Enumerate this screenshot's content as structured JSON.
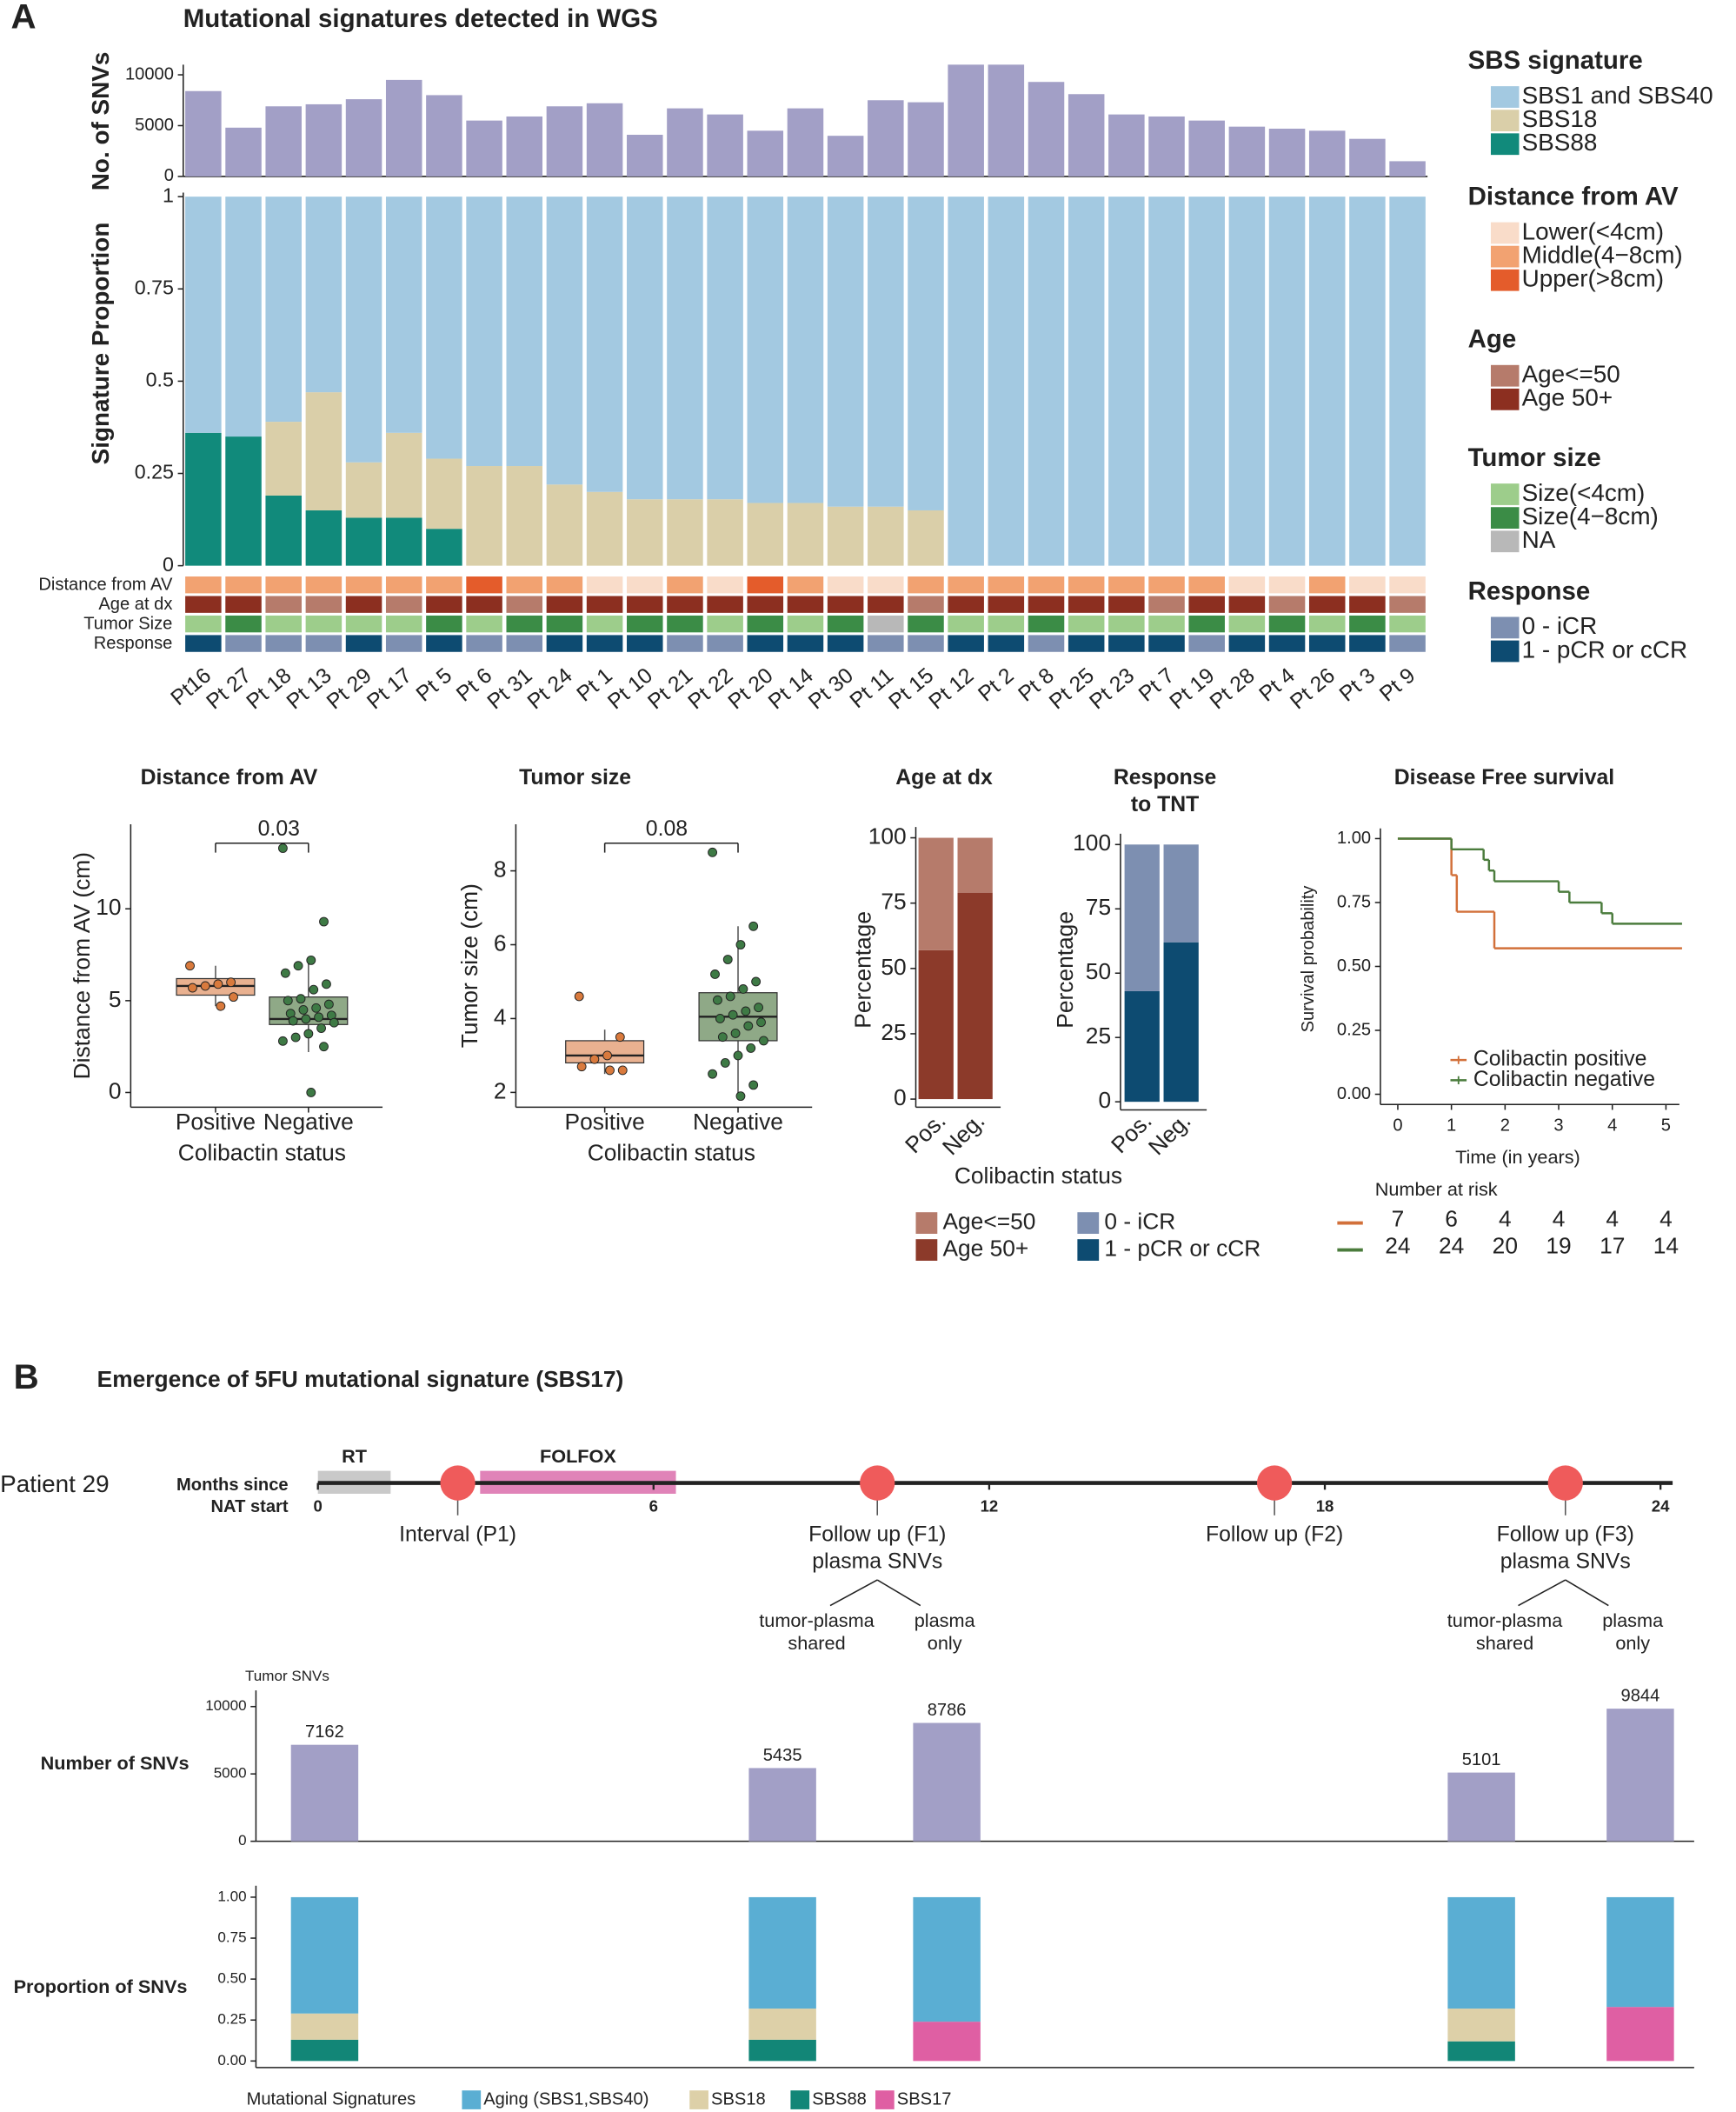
{
  "panel_a": {
    "label": "A"
  },
  "panel_b": {
    "label": "B",
    "title": "Emergence of 5FU mutational signature (SBS17)"
  },
  "chart_data": [
    {
      "type": "bar",
      "title": "Mutational signatures detected in WGS",
      "ylabel": "No. of SNVs",
      "color": "#a29fc6",
      "categories": [
        "Pt16",
        "Pt 27",
        "Pt 18",
        "Pt 13",
        "Pt 29",
        "Pt 17",
        "Pt 5",
        "Pt 6",
        "Pt 31",
        "Pt 24",
        "Pt 1",
        "Pt 10",
        "Pt 21",
        "Pt 22",
        "Pt 20",
        "Pt 14",
        "Pt 30",
        "Pt 11",
        "Pt 15",
        "Pt 12",
        "Pt 2",
        "Pt 8",
        "Pt 25",
        "Pt 23",
        "Pt 7",
        "Pt 19",
        "Pt 28",
        "Pt 4",
        "Pt 26",
        "Pt 3",
        "Pt 9"
      ],
      "values": [
        8400,
        4800,
        6900,
        7100,
        7600,
        9500,
        8000,
        5500,
        5900,
        6900,
        7200,
        4100,
        6700,
        6100,
        4500,
        6700,
        4000,
        7500,
        7300,
        11000,
        11000,
        9300,
        8100,
        6100,
        5900,
        5500,
        4900,
        4700,
        4500,
        3700,
        1500
      ],
      "ylim": [
        0,
        11000
      ],
      "yticks": [
        0,
        5000,
        10000
      ]
    },
    {
      "type": "stacked_bar",
      "ylabel": "Signature Proportion",
      "legend_title": "SBS signature",
      "ylim": [
        0,
        1
      ],
      "yticks": [
        0,
        0.25,
        0.5,
        0.75,
        1
      ],
      "series": [
        {
          "name": "SBS1 and SBS40",
          "color": "#a3c9e1",
          "values": [
            0.64,
            0.65,
            0.61,
            0.53,
            0.72,
            0.64,
            0.71,
            0.73,
            0.73,
            0.78,
            0.8,
            0.82,
            0.82,
            0.82,
            0.83,
            0.83,
            0.84,
            0.84,
            0.85,
            1,
            1,
            1,
            1,
            1,
            1,
            1,
            1,
            1,
            1,
            1,
            1
          ]
        },
        {
          "name": "SBS18",
          "color": "#dacfa9",
          "values": [
            0,
            0,
            0.2,
            0.32,
            0.15,
            0.23,
            0.19,
            0.27,
            0.27,
            0.22,
            0.2,
            0.18,
            0.18,
            0.18,
            0.17,
            0.17,
            0.16,
            0.16,
            0.15,
            0,
            0,
            0,
            0,
            0,
            0,
            0,
            0,
            0,
            0,
            0,
            0
          ]
        },
        {
          "name": "SBS88",
          "color": "#118a7b",
          "values": [
            0.36,
            0.35,
            0.19,
            0.15,
            0.13,
            0.13,
            0.1,
            0,
            0,
            0,
            0,
            0,
            0,
            0,
            0,
            0,
            0,
            0,
            0,
            0,
            0,
            0,
            0,
            0,
            0,
            0,
            0,
            0,
            0,
            0,
            0
          ]
        }
      ],
      "tracks": [
        {
          "name": "Distance from AV",
          "legend_title": "Distance from AV",
          "levels": [
            {
              "label": "Lower(<4cm)",
              "color": "#f9dcc9"
            },
            {
              "label": "Middle(4−8cm)",
              "color": "#f2a271"
            },
            {
              "label": "Upper(>8cm)",
              "color": "#e45c2b"
            }
          ],
          "values": [
            "Middle(4−8cm)",
            "Middle(4−8cm)",
            "Middle(4−8cm)",
            "Middle(4−8cm)",
            "Middle(4−8cm)",
            "Middle(4−8cm)",
            "Middle(4−8cm)",
            "Upper(>8cm)",
            "Middle(4−8cm)",
            "Middle(4−8cm)",
            "Lower(<4cm)",
            "Lower(<4cm)",
            "Middle(4−8cm)",
            "Lower(<4cm)",
            "Upper(>8cm)",
            "Middle(4−8cm)",
            "Lower(<4cm)",
            "Lower(<4cm)",
            "Middle(4−8cm)",
            "Middle(4−8cm)",
            "Middle(4−8cm)",
            "Middle(4−8cm)",
            "Middle(4−8cm)",
            "Middle(4−8cm)",
            "Middle(4−8cm)",
            "Middle(4−8cm)",
            "Lower(<4cm)",
            "Lower(<4cm)",
            "Middle(4−8cm)",
            "Lower(<4cm)",
            "Lower(<4cm)"
          ]
        },
        {
          "name": "Age at dx",
          "legend_title": "Age",
          "levels": [
            {
              "label": "Age<=50",
              "color": "#b67b6b"
            },
            {
              "label": "Age 50+",
              "color": "#8c2f20"
            }
          ],
          "values": [
            "Age 50+",
            "Age 50+",
            "Age<=50",
            "Age<=50",
            "Age 50+",
            "Age<=50",
            "Age 50+",
            "Age 50+",
            "Age<=50",
            "Age 50+",
            "Age 50+",
            "Age 50+",
            "Age 50+",
            "Age 50+",
            "Age 50+",
            "Age 50+",
            "Age 50+",
            "Age 50+",
            "Age<=50",
            "Age 50+",
            "Age 50+",
            "Age 50+",
            "Age 50+",
            "Age 50+",
            "Age<=50",
            "Age 50+",
            "Age 50+",
            "Age<=50",
            "Age 50+",
            "Age 50+",
            "Age<=50"
          ]
        },
        {
          "name": "Tumor Size",
          "legend_title": "Tumor size",
          "levels": [
            {
              "label": "Size(<4cm)",
              "color": "#9dcd8b"
            },
            {
              "label": "Size(4−8cm)",
              "color": "#3b8c46"
            },
            {
              "label": "NA",
              "color": "#b8b8b8"
            }
          ],
          "values": [
            "Size(<4cm)",
            "Size(4−8cm)",
            "Size(<4cm)",
            "Size(<4cm)",
            "Size(<4cm)",
            "Size(<4cm)",
            "Size(4−8cm)",
            "Size(<4cm)",
            "Size(4−8cm)",
            "Size(4−8cm)",
            "Size(<4cm)",
            "Size(4−8cm)",
            "Size(4−8cm)",
            "Size(<4cm)",
            "Size(4−8cm)",
            "Size(<4cm)",
            "Size(4−8cm)",
            "NA",
            "Size(4−8cm)",
            "Size(<4cm)",
            "Size(<4cm)",
            "Size(4−8cm)",
            "Size(<4cm)",
            "Size(<4cm)",
            "Size(<4cm)",
            "Size(4−8cm)",
            "Size(<4cm)",
            "Size(4−8cm)",
            "Size(<4cm)",
            "Size(4−8cm)",
            "Size(<4cm)"
          ]
        },
        {
          "name": "Response",
          "legend_title": "Response",
          "levels": [
            {
              "label": "0 - iCR",
              "color": "#7d8fb1"
            },
            {
              "label": "1 - pCR or cCR",
              "color": "#0d4b71"
            }
          ],
          "values": [
            "1 - pCR or cCR",
            "0 - iCR",
            "0 - iCR",
            "0 - iCR",
            "1 - pCR or cCR",
            "0 - iCR",
            "1 - pCR or cCR",
            "0 - iCR",
            "0 - iCR",
            "1 - pCR or cCR",
            "1 - pCR or cCR",
            "1 - pCR or cCR",
            "0 - iCR",
            "0 - iCR",
            "1 - pCR or cCR",
            "1 - pCR or cCR",
            "1 - pCR or cCR",
            "0 - iCR",
            "0 - iCR",
            "1 - pCR or cCR",
            "1 - pCR or cCR",
            "0 - iCR",
            "1 - pCR or cCR",
            "1 - pCR or cCR",
            "1 - pCR or cCR",
            "0 - iCR",
            "1 - pCR or cCR",
            "1 - pCR or cCR",
            "1 - pCR or cCR",
            "1 - pCR or cCR",
            "0 - iCR"
          ]
        }
      ]
    },
    {
      "type": "box",
      "title": "Distance from AV",
      "ylabel": "Distance from AV (cm)",
      "xlabel": "Colibactin status",
      "categories": [
        "Positive",
        "Negative"
      ],
      "p_value": "0.03",
      "ylim": [
        -0.8,
        14.6
      ],
      "yticks": [
        0,
        5,
        10
      ],
      "boxes": [
        {
          "color": "#e9b190",
          "point_color": "#d97a3d",
          "q1": 5.3,
          "median": 5.8,
          "q3": 6.2,
          "whisker_low": 4.7,
          "whisker_high": 6.9,
          "points": [
            6.9,
            6.0,
            5.9,
            5.8,
            5.7,
            5.2,
            4.7
          ]
        },
        {
          "color": "#8fa987",
          "point_color": "#3e7a45",
          "q1": 3.7,
          "median": 4.0,
          "q3": 5.2,
          "whisker_low": 2.2,
          "whisker_high": 7.2,
          "points": [
            13.3,
            9.3,
            7.2,
            6.9,
            6.5,
            5.9,
            5.6,
            5.1,
            5.0,
            4.8,
            4.6,
            4.5,
            4.3,
            4.2,
            4.1,
            4.0,
            3.9,
            3.8,
            3.5,
            3.2,
            3.0,
            2.8,
            2.5,
            0
          ]
        }
      ]
    },
    {
      "type": "box",
      "title": "Tumor size",
      "ylabel": "Tumor size (cm)",
      "xlabel": "Colibactin status",
      "categories": [
        "Positive",
        "Negative"
      ],
      "p_value": "0.08",
      "ylim": [
        1.6,
        9.26
      ],
      "yticks": [
        2,
        4,
        6,
        8
      ],
      "boxes": [
        {
          "color": "#e9b190",
          "point_color": "#d97a3d",
          "q1": 2.8,
          "median": 3.0,
          "q3": 3.4,
          "whisker_low": 2.5,
          "whisker_high": 3.7,
          "points": [
            4.6,
            3.5,
            3.0,
            2.9,
            2.7,
            2.6,
            2.6
          ]
        },
        {
          "color": "#8fa987",
          "point_color": "#3e7a45",
          "q1": 3.4,
          "median": 4.05,
          "q3": 4.7,
          "whisker_low": 1.9,
          "whisker_high": 6.5,
          "points": [
            8.5,
            6.5,
            6.0,
            5.6,
            5.2,
            5.0,
            4.8,
            4.6,
            4.5,
            4.3,
            4.2,
            4.1,
            4.0,
            3.9,
            3.8,
            3.6,
            3.5,
            3.4,
            3.2,
            3.0,
            2.8,
            2.5,
            2.2,
            1.9
          ]
        }
      ]
    },
    {
      "type": "stacked_pct",
      "title": "Age at dx",
      "ylabel": "Percentage",
      "xlabel": "Colibactin status",
      "categories": [
        "Pos.",
        "Neg."
      ],
      "ylim": [
        0,
        100
      ],
      "yticks": [
        0,
        25,
        50,
        75,
        100
      ],
      "series": [
        {
          "name": "Age<=50",
          "color": "#b67b6b",
          "values": [
            43,
            21
          ]
        },
        {
          "name": "Age 50+",
          "color": "#8c3a2a",
          "values": [
            57,
            79
          ]
        }
      ]
    },
    {
      "type": "stacked_pct",
      "title": [
        "Response",
        "to TNT"
      ],
      "ylabel": "Percentage",
      "categories": [
        "Pos.",
        "Neg."
      ],
      "ylim": [
        0,
        100
      ],
      "yticks": [
        0,
        25,
        50,
        75,
        100
      ],
      "series": [
        {
          "name": "0 - iCR",
          "color": "#7d8fb1",
          "values": [
            57,
            38
          ]
        },
        {
          "name": "1 - pCR or cCR",
          "color": "#0d4b71",
          "values": [
            43,
            62
          ]
        }
      ]
    },
    {
      "type": "step",
      "title": "Disease Free survival",
      "ylabel": "Survival probability",
      "xlabel": "Time (in years)",
      "risk_title": "Number at risk",
      "xlim": [
        -0.45,
        5.25
      ],
      "xticks": [
        0,
        1,
        2,
        3,
        4,
        5
      ],
      "ylim": [
        -0.04,
        1.04
      ],
      "yticks": [
        {
          "value": 0,
          "label": "0.00"
        },
        0.25,
        {
          "value": 0.5,
          "label": "0.50"
        },
        0.75,
        {
          "value": 1,
          "label": "1.00"
        }
      ],
      "series": [
        {
          "name": "Colibactin positive",
          "color": "#d2703a",
          "x": [
            0,
            1.0,
            1.1,
            1.8,
            5.3
          ],
          "values": [
            1,
            0.857,
            0.714,
            0.571,
            0.571
          ],
          "at_risk": [
            7,
            6,
            4,
            4,
            4,
            4
          ]
        },
        {
          "name": "Colibactin negative",
          "color": "#4b7c3d",
          "x": [
            0,
            1.0,
            1.6,
            1.7,
            1.8,
            3.0,
            3.2,
            3.8,
            4.0,
            5.3
          ],
          "values": [
            1,
            0.958,
            0.917,
            0.875,
            0.833,
            0.792,
            0.75,
            0.708,
            0.667,
            0.667
          ],
          "at_risk": [
            24,
            24,
            20,
            19,
            17,
            14
          ]
        }
      ]
    },
    {
      "type": "bar",
      "ylabel": "Number of SNVs",
      "axis_title": "Tumor SNVs",
      "color": "#a29fc6",
      "values": [
        7162,
        5435,
        8786,
        5101,
        9844
      ],
      "ylim": [
        0,
        11200
      ],
      "yticks": [
        0,
        5000,
        10000
      ]
    },
    {
      "type": "stacked_bar",
      "ylabel": "Proportion of SNVs",
      "legend_title": "Mutational Signatures",
      "ylim": [
        -0.04,
        1.07
      ],
      "yticks": [
        {
          "value": 0,
          "label": "0.00"
        },
        0.25,
        {
          "value": 0.5,
          "label": "0.50"
        },
        0.75,
        {
          "value": 1,
          "label": "1.00"
        }
      ],
      "series": [
        {
          "name": "Aging (SBS1,SBS40)",
          "color": "#5aaed3",
          "values": [
            0.71,
            0.68,
            0.76,
            0.68,
            0.67
          ]
        },
        {
          "name": "SBS18",
          "color": "#ddd0a8",
          "values": [
            0.16,
            0.19,
            0,
            0.2,
            0
          ]
        },
        {
          "name": "SBS88",
          "color": "#128677",
          "values": [
            0.13,
            0.13,
            0,
            0.12,
            0
          ]
        },
        {
          "name": "SBS17",
          "color": "#df5fa3",
          "values": [
            0,
            0,
            0.24,
            0,
            0.33
          ]
        }
      ]
    }
  ],
  "timeline": {
    "patient": "Patient 29",
    "axis_label": [
      "Months since",
      "NAT start"
    ],
    "xlim": [
      0,
      24
    ],
    "xticks": [
      0,
      6,
      12,
      18,
      24
    ],
    "bars": [
      {
        "label": "RT",
        "start": 0,
        "end": 1.3,
        "color": "#c9c9c9"
      },
      {
        "label": "FOLFOX",
        "start": 2.9,
        "end": 6.4,
        "color": "#e083b8"
      }
    ],
    "events": [
      {
        "month": 2.5,
        "lines": [
          "Interval (P1)"
        ]
      },
      {
        "month": 10,
        "lines": [
          "Follow up (F1)",
          "plasma SNVs"
        ],
        "branches": [
          [
            "tumor-plasma",
            "shared"
          ],
          [
            "plasma",
            "only"
          ]
        ]
      },
      {
        "month": 17.1,
        "lines": [
          "Follow up (F2)"
        ]
      },
      {
        "month": 22.3,
        "lines": [
          "Follow up (F3)",
          "plasma SNVs"
        ],
        "branches": [
          [
            "tumor-plasma",
            "shared"
          ],
          [
            "plasma",
            "only"
          ]
        ]
      }
    ]
  }
}
